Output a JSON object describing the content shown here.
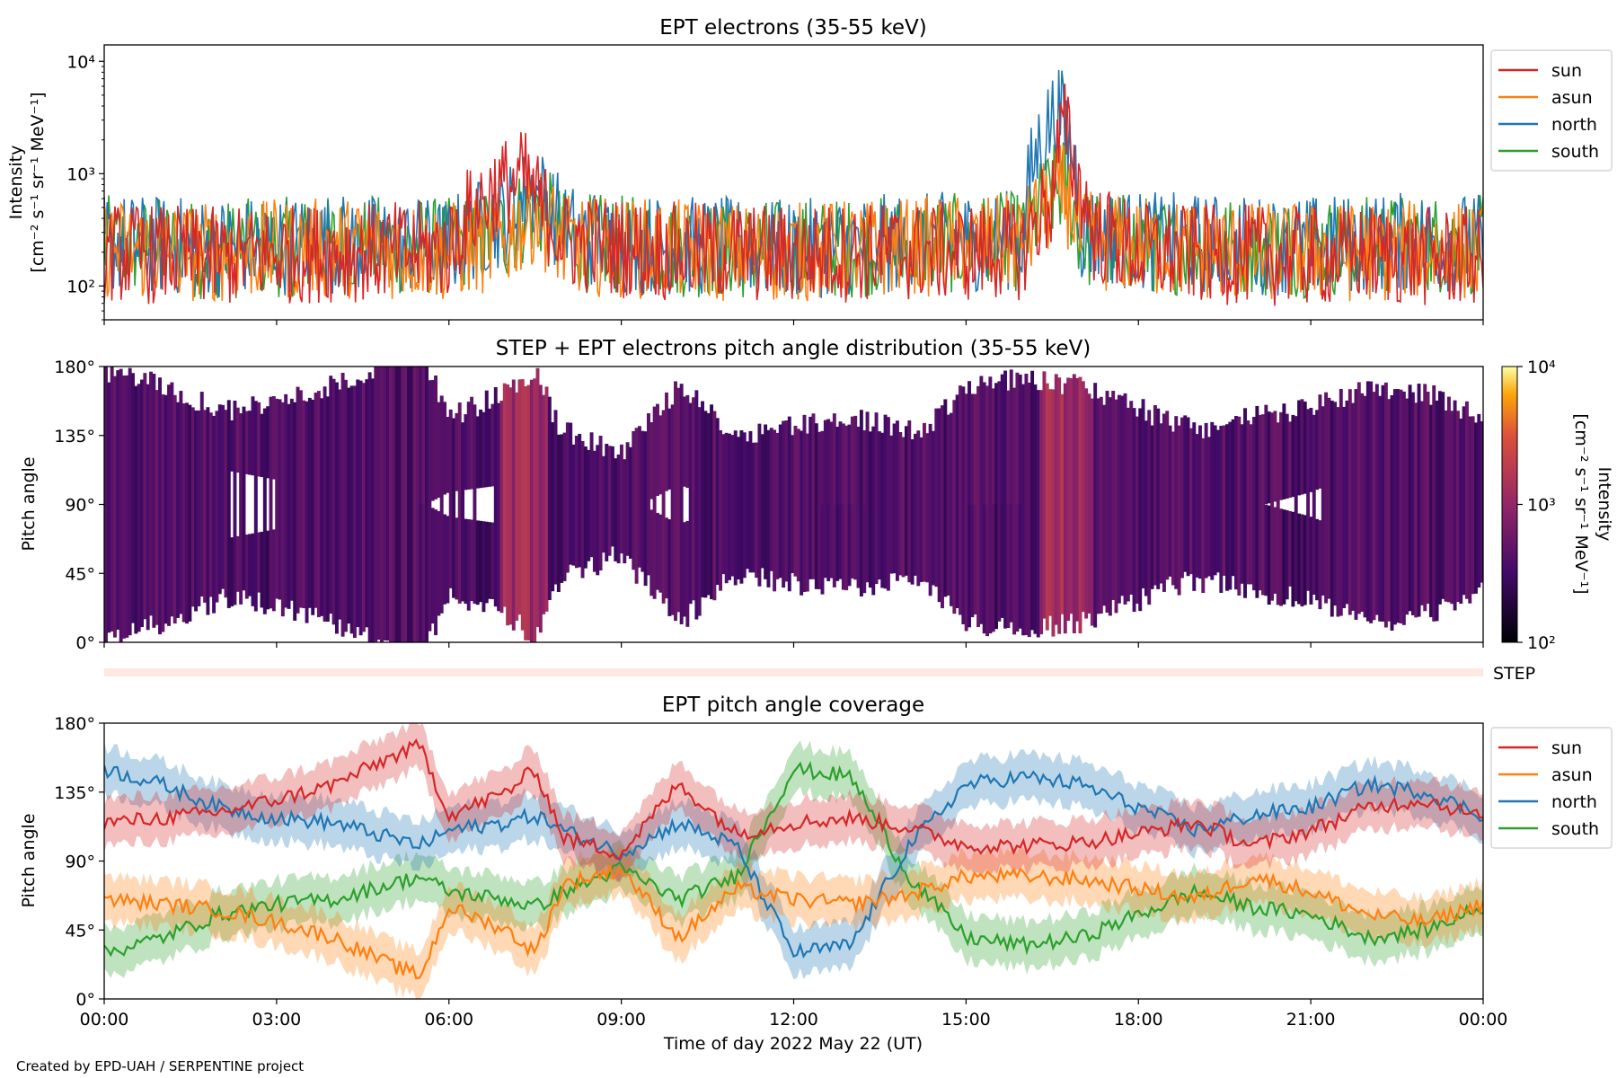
{
  "figure": {
    "footer": "Created by EPD-UAH / SERPENTINE project",
    "xlabel": "Time of day 2022 May 22 (UT)",
    "xticks": [
      "00:00",
      "03:00",
      "06:00",
      "09:00",
      "12:00",
      "15:00",
      "18:00",
      "21:00",
      "00:00"
    ]
  },
  "colors": {
    "sun": "#d62728",
    "asun": "#ff7f0e",
    "north": "#1f77b4",
    "south": "#2ca02c"
  },
  "chart_data": [
    {
      "type": "line",
      "title": "EPT electrons (35-55 keV)",
      "ylabel_lines": [
        "Intensity",
        "[cm⁻² s⁻¹ sr⁻¹ MeV⁻¹]"
      ],
      "yscale": "log",
      "ylim": [
        50,
        14000
      ],
      "yticks": [
        "10²",
        "10³",
        "10⁴"
      ],
      "xlim_hours": [
        0,
        24
      ],
      "legend": [
        "sun",
        "asun",
        "north",
        "south"
      ],
      "legend_position": "outside-right",
      "series": [
        {
          "name": "sun",
          "x_hours": [
            0,
            1,
            2,
            3,
            4,
            5,
            6,
            6.8,
            7.3,
            7.6,
            8,
            9,
            10,
            11,
            12,
            13,
            14,
            15,
            16,
            16.5,
            16.7,
            16.9,
            17.2,
            18,
            19,
            20,
            21,
            22,
            23,
            24
          ],
          "values": [
            200,
            190,
            180,
            190,
            200,
            200,
            210,
            700,
            900,
            500,
            250,
            220,
            200,
            200,
            190,
            200,
            200,
            200,
            210,
            600,
            2600,
            900,
            300,
            200,
            190,
            190,
            180,
            190,
            180,
            180
          ]
        },
        {
          "name": "asun",
          "x_hours": [
            0,
            1,
            2,
            3,
            4,
            5,
            6,
            7,
            7.5,
            8,
            9,
            10,
            11,
            12,
            13,
            14,
            15,
            16,
            16.7,
            17,
            18,
            19,
            20,
            21,
            22,
            23,
            24
          ],
          "values": [
            220,
            200,
            200,
            210,
            220,
            210,
            200,
            250,
            450,
            230,
            220,
            210,
            200,
            200,
            210,
            220,
            230,
            240,
            700,
            260,
            220,
            210,
            200,
            200,
            200,
            210,
            200
          ]
        },
        {
          "name": "north",
          "x_hours": [
            0,
            1,
            2,
            3,
            4,
            5,
            6,
            7,
            7.5,
            8,
            9,
            10,
            11,
            12,
            13,
            14,
            15,
            16,
            16.6,
            17,
            18,
            19,
            20,
            21,
            22,
            23,
            24
          ],
          "values": [
            240,
            230,
            220,
            230,
            240,
            230,
            220,
            420,
            700,
            300,
            240,
            230,
            220,
            210,
            230,
            240,
            250,
            260,
            3600,
            300,
            250,
            240,
            230,
            230,
            240,
            250,
            240
          ]
        },
        {
          "name": "south",
          "x_hours": [
            0,
            1,
            2,
            3,
            4,
            5,
            6,
            7,
            7.5,
            8,
            9,
            10,
            11,
            12,
            13,
            14,
            15,
            16,
            16.7,
            17,
            18,
            19,
            20,
            21,
            22,
            23,
            24
          ],
          "values": [
            230,
            220,
            210,
            220,
            230,
            230,
            220,
            300,
            500,
            250,
            230,
            220,
            210,
            210,
            220,
            230,
            240,
            250,
            800,
            260,
            240,
            230,
            220,
            220,
            230,
            240,
            230
          ]
        }
      ]
    },
    {
      "type": "heatmap",
      "title": "STEP + EPT electrons pitch angle distribution (35-55 keV)",
      "ylabel": "Pitch angle",
      "ylim": [
        0,
        180
      ],
      "yticks": [
        "0°",
        "45°",
        "90°",
        "135°",
        "180°"
      ],
      "xlim_hours": [
        0,
        24
      ],
      "colorbar": {
        "scale": "log",
        "range": [
          100,
          10000
        ],
        "ticks": [
          "10²",
          "10³",
          "10⁴"
        ],
        "label": "Intensity",
        "label2": "[cm⁻² s⁻¹ sr⁻¹ MeV⁻¹]",
        "colormap": "inferno"
      },
      "step_label": "STEP"
    },
    {
      "type": "area",
      "title": "EPT pitch angle coverage",
      "ylabel": "Pitch angle",
      "ylim": [
        0,
        180
      ],
      "yticks": [
        "0°",
        "45°",
        "90°",
        "135°",
        "180°"
      ],
      "xlim_hours": [
        0,
        24
      ],
      "legend": [
        "sun",
        "asun",
        "north",
        "south"
      ],
      "legend_position": "outside-right",
      "band_halfwidth_deg": 15,
      "series": [
        {
          "name": "sun",
          "x_hours": [
            0,
            1,
            2,
            3,
            4,
            5,
            5.5,
            6,
            7,
            7.5,
            8,
            9,
            10,
            11,
            12,
            13,
            14,
            15,
            16,
            17,
            18,
            19,
            20,
            21,
            22,
            23,
            24
          ],
          "values": [
            115,
            118,
            122,
            130,
            140,
            158,
            165,
            120,
            135,
            150,
            105,
            95,
            140,
            108,
            115,
            118,
            112,
            100,
            100,
            102,
            108,
            115,
            100,
            110,
            125,
            130,
            118
          ]
        },
        {
          "name": "asun",
          "x_hours": [
            0,
            1,
            2,
            3,
            4,
            5,
            5.5,
            6,
            7,
            7.5,
            8,
            9,
            10,
            11,
            12,
            13,
            14,
            15,
            16,
            17,
            18,
            19,
            20,
            21,
            22,
            23,
            24
          ],
          "values": [
            65,
            62,
            58,
            50,
            40,
            22,
            15,
            60,
            45,
            30,
            75,
            85,
            40,
            72,
            65,
            62,
            68,
            80,
            80,
            78,
            72,
            65,
            80,
            70,
            55,
            50,
            62
          ]
        },
        {
          "name": "north",
          "x_hours": [
            0,
            1,
            2,
            3,
            4,
            5,
            5.5,
            6,
            7,
            7.5,
            8,
            9,
            10,
            11,
            12,
            13,
            14,
            15,
            16,
            17,
            18,
            19,
            20,
            21,
            22,
            23,
            24
          ],
          "values": [
            150,
            140,
            125,
            118,
            115,
            105,
            100,
            110,
            115,
            120,
            110,
            95,
            115,
            100,
            30,
            35,
            100,
            140,
            145,
            140,
            125,
            110,
            120,
            125,
            140,
            135,
            120
          ]
        },
        {
          "name": "south",
          "x_hours": [
            0,
            1,
            2,
            3,
            4,
            5,
            5.5,
            6,
            7,
            7.5,
            8,
            9,
            10,
            11,
            12,
            13,
            14,
            15,
            16,
            17,
            18,
            19,
            20,
            21,
            22,
            23,
            24
          ],
          "values": [
            30,
            40,
            55,
            62,
            65,
            75,
            80,
            70,
            65,
            60,
            70,
            85,
            65,
            80,
            150,
            145,
            80,
            40,
            35,
            40,
            55,
            70,
            60,
            55,
            40,
            45,
            60
          ]
        }
      ]
    }
  ]
}
